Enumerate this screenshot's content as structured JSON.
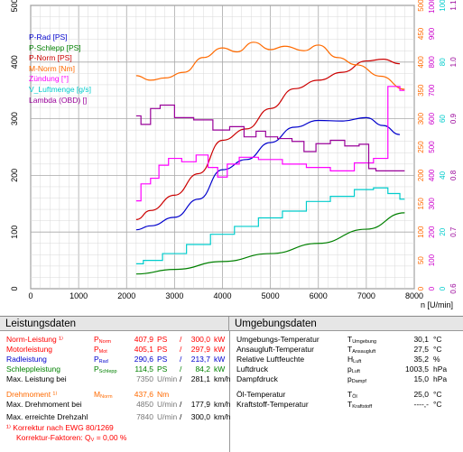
{
  "chart_data": {
    "type": "line",
    "xlabel": "n [U/min]",
    "x_ticks": [
      "0",
      "1000",
      "2000",
      "3000",
      "4000",
      "5000",
      "6000",
      "7000",
      "8000"
    ],
    "xlim": [
      0,
      8000
    ],
    "y_left_ticks": [
      "0",
      "100",
      "200",
      "300",
      "400",
      "500"
    ],
    "ylim_left": [
      0,
      500
    ],
    "right_axes": [
      {
        "name": "orange-axis",
        "color": "#ff6a00",
        "ticks": [
          "0",
          "50",
          "100",
          "150",
          "200",
          "250",
          "300",
          "350",
          "400",
          "450",
          "500"
        ]
      },
      {
        "name": "magenta-axis",
        "color": "#cc00cc",
        "ticks": [
          "0",
          "100",
          "200",
          "300",
          "400",
          "500",
          "600",
          "700",
          "800",
          "900",
          "1000"
        ]
      },
      {
        "name": "cyan-axis",
        "color": "#00cccc",
        "ticks": [
          "0",
          "20",
          "40",
          "60",
          "80",
          "100"
        ]
      },
      {
        "name": "purple-axis",
        "color": "#990099",
        "ticks": [
          "0.6",
          "0.7",
          "0.8",
          "0.9",
          "1.0",
          "1.1"
        ]
      }
    ],
    "series": [
      {
        "name": "P-Rad [PS]",
        "color": "#0000cc",
        "x": [
          2200,
          2500,
          3000,
          3500,
          4000,
          4500,
          5000,
          5500,
          6000,
          6500,
          7000,
          7350,
          7700
        ],
        "y": [
          104,
          111,
          126,
          158,
          210,
          228,
          258,
          285,
          297,
          296,
          302,
          288,
          272
        ]
      },
      {
        "name": "P-Schlepp [PS]",
        "color": "#008000",
        "x": [
          2200,
          3000,
          4000,
          5000,
          6000,
          7000,
          7800
        ],
        "y": [
          26,
          34,
          48,
          62,
          80,
          105,
          134
        ]
      },
      {
        "name": "P-Norm [PS]",
        "color": "#cc0000",
        "x": [
          2200,
          2500,
          3000,
          3500,
          4000,
          4500,
          5000,
          5500,
          6000,
          6500,
          7000,
          7350,
          7700
        ],
        "y": [
          122,
          138,
          165,
          203,
          262,
          282,
          318,
          353,
          368,
          382,
          402,
          405,
          397
        ]
      },
      {
        "name": "M-Norm [Nm]",
        "color": "#ff6a00",
        "x": [
          2200,
          2500,
          2800,
          3200,
          3600,
          4000,
          4300,
          4650,
          5000,
          5300,
          5700,
          6000,
          6400,
          6800,
          7300,
          7800
        ],
        "y": [
          376,
          368,
          372,
          382,
          408,
          425,
          418,
          435,
          422,
          428,
          420,
          430,
          408,
          395,
          375,
          352
        ]
      },
      {
        "name": "Zündung [°]",
        "color": "#ff00ff",
        "x": [
          2200,
          2400,
          2600,
          2750,
          3000,
          3300,
          3600,
          3800,
          4000,
          4200,
          4500,
          5000,
          5500,
          6000,
          6500,
          7000,
          7300,
          7600,
          7800
        ],
        "y": [
          155,
          185,
          195,
          218,
          230,
          224,
          236,
          214,
          197,
          220,
          232,
          228,
          220,
          214,
          208,
          222,
          230,
          357,
          350
        ]
      },
      {
        "name": "V_Luftmenge [g/s]",
        "color": "#00cccc",
        "x": [
          2200,
          2500,
          3000,
          3500,
          4000,
          4500,
          5000,
          5500,
          6000,
          6500,
          7000,
          7300,
          7600,
          7800
        ],
        "y": [
          44,
          50,
          62,
          78,
          96,
          110,
          125,
          137,
          154,
          163,
          175,
          178,
          168,
          158
        ]
      },
      {
        "name": "Lambda (OBD) []",
        "color": "#990099",
        "x": [
          2200,
          2400,
          2600,
          2800,
          3200,
          3600,
          4000,
          4300,
          4600,
          4800,
          5000,
          5300,
          5600,
          5800,
          6100,
          6400,
          6700,
          7000,
          7100,
          7300,
          7500,
          7800
        ],
        "y": [
          305,
          290,
          318,
          324,
          302,
          298,
          280,
          286,
          268,
          278,
          268,
          265,
          260,
          242,
          256,
          262,
          252,
          255,
          212,
          208,
          208,
          208
        ]
      }
    ]
  },
  "left_panel": {
    "title": "Leistungsdaten",
    "rows": [
      {
        "label": "Norm-Leistung ¹⁾",
        "symbol": "P",
        "sub": "Norm",
        "v1": "407,9",
        "u1": "PS",
        "v2": "300,0",
        "u2": "kW",
        "color": "#ff0000"
      },
      {
        "label": "Motorleistung",
        "symbol": "P",
        "sub": "Mot",
        "v1": "405,1",
        "u1": "PS",
        "v2": "297,9",
        "u2": "kW",
        "color": "#ff0000"
      },
      {
        "label": "Radleistung",
        "symbol": "P",
        "sub": "Rad",
        "v1": "290,6",
        "u1": "PS",
        "v2": "213,7",
        "u2": "kW",
        "color": "#0000cc"
      },
      {
        "label": "Schleppleistung",
        "symbol": "P",
        "sub": "Schlepp",
        "v1": "114,5",
        "u1": "PS",
        "v2": "84,2",
        "u2": "kW",
        "color": "#008000"
      },
      {
        "label": "Max. Leistung bei",
        "v1": "7350",
        "u1": "U/min",
        "v2": "281,1",
        "u2": "km/h",
        "color": "#000000"
      },
      {
        "label": "Drehmoment ¹⁾",
        "symbol": "M",
        "sub": "Norm",
        "v1": "437,6",
        "u1": "Nm",
        "color": "#ff6a00"
      },
      {
        "label": "Max. Drehmoment bei",
        "v1": "4850",
        "u1": "U/min",
        "v2": "177,9",
        "u2": "km/h",
        "color": "#000000"
      },
      {
        "label": "Max. erreichte Drehzahl",
        "v1": "7840",
        "u1": "U/min",
        "v2": "300,0",
        "u2": "km/h",
        "color": "#000000"
      }
    ],
    "footnote1": "¹⁾ Korrektur nach EWG 80/1269",
    "footnote2_pre": "Korrektur-Faktoren: Q",
    "footnote2_sub": "V",
    "footnote2_post": " =   0,00 %",
    "footnote_color": "#ff0000"
  },
  "right_panel": {
    "title": "Umgebungsdaten",
    "rows": [
      {
        "label": "Umgebungs-Temperatur",
        "symbol": "T",
        "sub": "Umgebung",
        "value": "30,1",
        "unit": "°C"
      },
      {
        "label": "Ansaugluft-Temperatur",
        "symbol": "T",
        "sub": "Ansaugluft",
        "value": "27,5",
        "unit": "°C"
      },
      {
        "label": "Relative Luftfeuchte",
        "symbol": "H",
        "sub": "Luft",
        "value": "35,2",
        "unit": "%"
      },
      {
        "label": "Luftdruck",
        "symbol": "p",
        "sub": "Luft",
        "value": "1003,5",
        "unit": "hPa"
      },
      {
        "label": "Dampfdruck",
        "symbol": "p",
        "sub": "Dampf",
        "value": "15,0",
        "unit": "hPa"
      },
      {
        "label": "Öl-Temperatur",
        "symbol": "T",
        "sub": "Öl",
        "value": "25,0",
        "unit": "°C"
      },
      {
        "label": "Kraftstoff-Temperatur",
        "symbol": "T",
        "sub": "Kraftstoff",
        "value": "----,-",
        "unit": "°C"
      }
    ]
  }
}
